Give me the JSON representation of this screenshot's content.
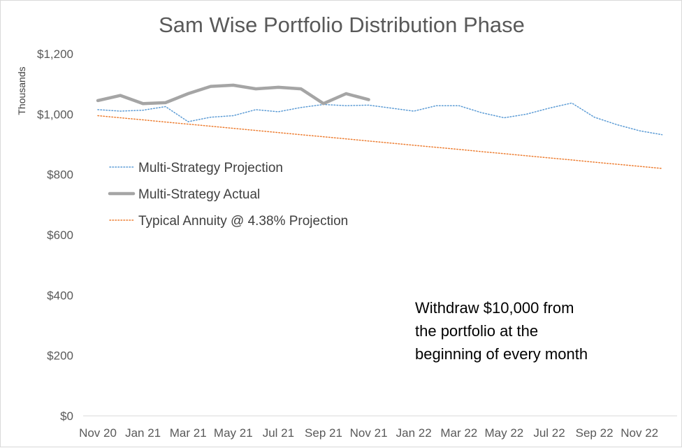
{
  "chart_data": {
    "type": "line",
    "title": "Sam Wise Portfolio Distribution Phase",
    "ylabel": "Thousands",
    "xlabel": "",
    "ylim": [
      0,
      1200
    ],
    "y_ticks": [
      "$0",
      "$200",
      "$400",
      "$600",
      "$800",
      "$1,000",
      "$1,200"
    ],
    "x_ticks": [
      "Nov 20",
      "Jan 21",
      "Mar 21",
      "May 21",
      "Jul 21",
      "Sep 21",
      "Nov 21",
      "Jan 22",
      "Mar 22",
      "May 22",
      "Jul 22",
      "Sep 22",
      "Nov 22"
    ],
    "x_months": [
      "Nov 20",
      "Dec 20",
      "Jan 21",
      "Feb 21",
      "Mar 21",
      "Apr 21",
      "May 21",
      "Jun 21",
      "Jul 21",
      "Aug 21",
      "Sep 21",
      "Oct 21",
      "Nov 21",
      "Dec 21",
      "Jan 22",
      "Feb 22",
      "Mar 22",
      "Apr 22",
      "May 22",
      "Jun 22",
      "Jul 22",
      "Aug 22",
      "Sep 22",
      "Oct 22",
      "Nov 22",
      "Dec 22"
    ],
    "series": [
      {
        "name": "Multi-Strategy Projection",
        "color": "#5b9bd5",
        "style": "dotted",
        "values": [
          1015,
          1010,
          1013,
          1025,
          975,
          990,
          995,
          1015,
          1008,
          1022,
          1032,
          1028,
          1030,
          1020,
          1010,
          1028,
          1028,
          1005,
          988,
          1000,
          1020,
          1037,
          990,
          965,
          945,
          932
        ]
      },
      {
        "name": "Multi-Strategy Actual",
        "color": "#a5a5a5",
        "style": "solid",
        "values": [
          1045,
          1062,
          1035,
          1038,
          1068,
          1092,
          1096,
          1084,
          1089,
          1084,
          1035,
          1068,
          1048
        ]
      },
      {
        "name": "Typical Annuity @ 4.38% Projection",
        "color": "#ed7d31",
        "style": "dotted",
        "values": [
          995,
          988,
          981,
          974,
          967,
          960,
          953,
          946,
          939,
          932,
          925,
          918,
          911,
          904,
          897,
          890,
          883,
          876,
          869,
          862,
          855,
          848,
          841,
          834,
          827,
          820
        ]
      }
    ],
    "annotation": [
      "Withdraw $10,000 from",
      "the portfolio at the",
      "beginning of every month"
    ],
    "grid": false,
    "legend_position": "upper-left inside plot"
  }
}
